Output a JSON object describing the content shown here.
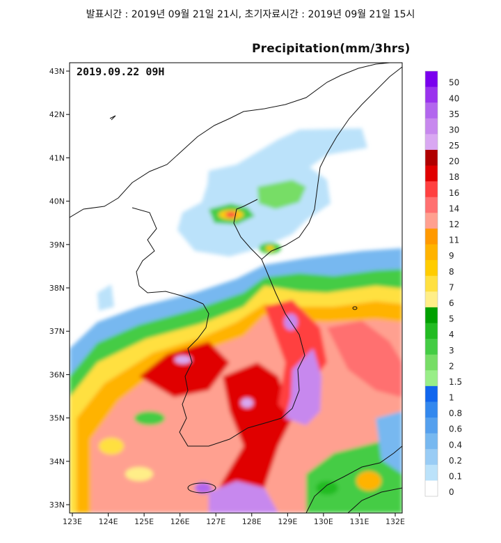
{
  "header": {
    "text": "발표시간 : 2019년 09월 21일 21시, 초기자료시간 : 2019년 09월 21일 15시"
  },
  "map": {
    "title": "Precipitation(mm/3hrs)",
    "valid_time": "2019.09.22 09H",
    "lat_labels": [
      "43N",
      "42N",
      "41N",
      "40N",
      "39N",
      "38N",
      "37N",
      "36N",
      "35N",
      "34N",
      "33N"
    ],
    "lon_labels": [
      "123E",
      "124E",
      "125E",
      "126E",
      "127E",
      "128E",
      "129E",
      "130E",
      "131E",
      "132E"
    ],
    "lat_range": [
      33,
      43
    ],
    "lon_range": [
      123,
      132
    ]
  },
  "legend": {
    "labels": [
      "50",
      "40",
      "35",
      "30",
      "25",
      "20",
      "18",
      "16",
      "14",
      "12",
      "11",
      "9",
      "8",
      "7",
      "6",
      "5",
      "4",
      "3",
      "2",
      "1.5",
      "1",
      "0.8",
      "0.6",
      "0.4",
      "0.2",
      "0.1",
      "0"
    ],
    "colors": [
      "#7a00ee",
      "#9a33ee",
      "#b266ee",
      "#c788ee",
      "#d9a8f2",
      "#b00000",
      "#e00000",
      "#ff4040",
      "#ff7070",
      "#ffa090",
      "#ff9900",
      "#ffb300",
      "#ffcc00",
      "#ffe040",
      "#ffee88",
      "#00a000",
      "#22bb22",
      "#44cc44",
      "#77dd66",
      "#99ee88",
      "#1166ee",
      "#3388ee",
      "#55a0ee",
      "#77b8f0",
      "#99ccf5",
      "#bbe2fa",
      "#ffffff"
    ]
  }
}
